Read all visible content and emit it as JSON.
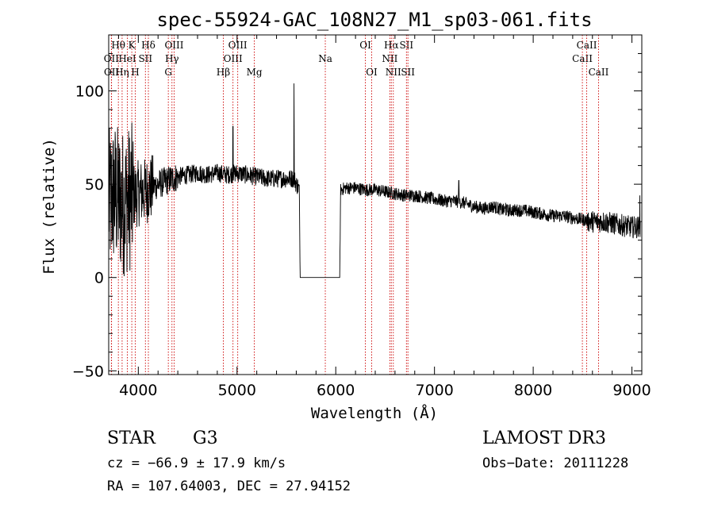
{
  "chart_data": {
    "type": "line",
    "title": "spec-55924-GAC_108N27_M1_sp03-061.fits",
    "xlabel": "Wavelength (Å)",
    "ylabel": "Flux (relative)",
    "xlim": [
      3700,
      9100
    ],
    "ylim": [
      -52,
      130
    ],
    "x_ticks": [
      4000,
      5000,
      6000,
      7000,
      8000,
      9000
    ],
    "y_ticks": [
      -50,
      0,
      50,
      100
    ],
    "spectrum_anchors": {
      "x": [
        3700,
        3760,
        3800,
        3850,
        3900,
        3950,
        4000,
        4050,
        4100,
        4200,
        4300,
        4400,
        4500,
        4600,
        4700,
        4800,
        4900,
        5000,
        5100,
        5200,
        5300,
        5400,
        5500,
        5580,
        5600,
        5630,
        5640,
        5660,
        6040,
        6050,
        6100,
        6200,
        6300,
        6400,
        6500,
        6600,
        6700,
        6800,
        6900,
        7000,
        7100,
        7200,
        7300,
        7400,
        7500,
        7600,
        7700,
        7800,
        7900,
        8000,
        8100,
        8200,
        8300,
        8400,
        8500,
        8600,
        8700,
        8800,
        8900,
        9000,
        9080
      ],
      "y": [
        40,
        45,
        42,
        40,
        42,
        44,
        45,
        46,
        47,
        50,
        52,
        54,
        55,
        56,
        55,
        56,
        55,
        56,
        55,
        54,
        53,
        53,
        53,
        53,
        50,
        48,
        0,
        0,
        0,
        47,
        48,
        48,
        47,
        47,
        46,
        45,
        44,
        44,
        43,
        42,
        41,
        41,
        40,
        38,
        37,
        38,
        36,
        36,
        36,
        35,
        34,
        33,
        33,
        32,
        31,
        30,
        30,
        29,
        28,
        27,
        27
      ]
    },
    "spikes": [
      {
        "x": 5577,
        "y": 104
      },
      {
        "x": 4959,
        "y": 81
      },
      {
        "x": 7246,
        "y": 52
      },
      {
        "x": 7720,
        "y": 40
      },
      {
        "x": 9080,
        "y": 44
      }
    ],
    "emission_lines": [
      {
        "x": 3727,
        "label": "OII",
        "row": 1
      },
      {
        "x": 3729,
        "label": "OII",
        "row": 2
      },
      {
        "x": 3798,
        "label": "Hθ",
        "row": 0
      },
      {
        "x": 3836,
        "label": "Hη",
        "row": 2
      },
      {
        "x": 3889,
        "label": "HeI",
        "row": 1
      },
      {
        "x": 3934,
        "label": "K",
        "row": 0
      },
      {
        "x": 3969,
        "label": "H",
        "row": 2
      },
      {
        "x": 4072,
        "label": "SII",
        "row": 1
      },
      {
        "x": 4102,
        "label": "Hδ",
        "row": 0
      },
      {
        "x": 4304,
        "label": "G",
        "row": 2
      },
      {
        "x": 4341,
        "label": "Hγ",
        "row": 1
      },
      {
        "x": 4363,
        "label": "OIII",
        "row": 0
      },
      {
        "x": 4861,
        "label": "Hβ",
        "row": 2
      },
      {
        "x": 4959,
        "label": "OIII",
        "row": 1
      },
      {
        "x": 5007,
        "label": "OIII",
        "row": 0
      },
      {
        "x": 5175,
        "label": "Mg",
        "row": 2
      },
      {
        "x": 5894,
        "label": "Na",
        "row": 1
      },
      {
        "x": 6300,
        "label": "OI",
        "row": 0
      },
      {
        "x": 6364,
        "label": "OI",
        "row": 2
      },
      {
        "x": 6548,
        "label": "NII",
        "row": 1
      },
      {
        "x": 6563,
        "label": "Hα",
        "row": 0
      },
      {
        "x": 6583,
        "label": "NII",
        "row": 2
      },
      {
        "x": 6716,
        "label": "SII",
        "row": 0
      },
      {
        "x": 6731,
        "label": "SII",
        "row": 2
      },
      {
        "x": 8498,
        "label": "CaII",
        "row": 1
      },
      {
        "x": 8542,
        "label": "CaII",
        "row": 0
      },
      {
        "x": 8662,
        "label": "CaII",
        "row": 2
      }
    ]
  },
  "info": {
    "object_type": "STAR",
    "subclass": "G3",
    "survey": "LAMOST DR3",
    "cz": "cz = −66.9 ± 17.9 km/s",
    "obs_date": "Obs−Date: 20111228",
    "coords": "RA = 107.64003, DEC =  27.94152"
  },
  "colors": {
    "axes": "#000000",
    "spectrum": "#000000",
    "line_markers": "#cc0000"
  }
}
